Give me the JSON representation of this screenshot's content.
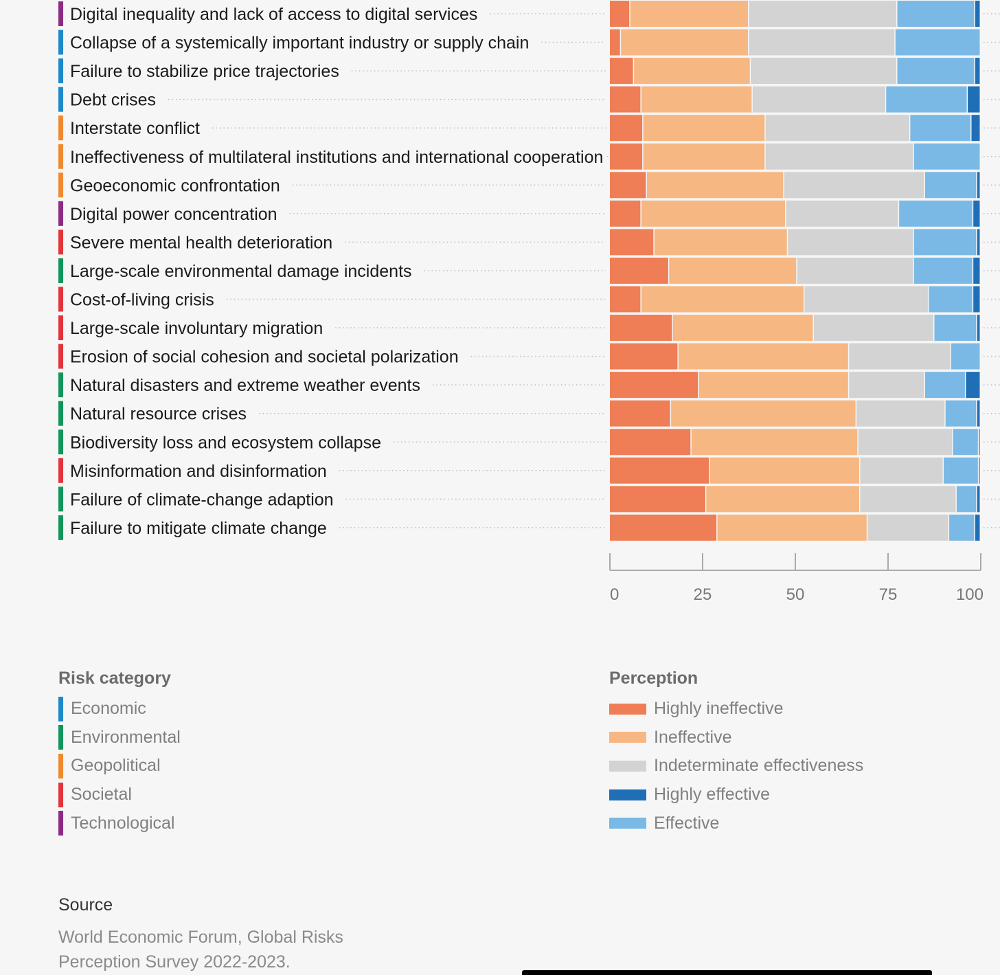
{
  "chart_data": {
    "type": "bar",
    "orientation": "horizontal",
    "stacked": true,
    "xlim": [
      0,
      100
    ],
    "x_ticks": [
      "0",
      "25",
      "50",
      "75",
      "100"
    ],
    "categories": [
      "Digital inequality and lack of access to digital services",
      "Collapse of a systemically important industry or supply chain",
      "Failure to stabilize price trajectories",
      "Debt crises",
      "Interstate conflict",
      "Ineffectiveness of multilateral institutions and international cooperation",
      "Geoeconomic confrontation",
      "Digital power concentration",
      "Severe mental health deterioration",
      "Large-scale environmental damage incidents",
      "Cost-of-living crisis",
      "Large-scale involuntary migration",
      "Erosion of social cohesion and societal polarization",
      "Natural disasters and extreme weather events",
      "Natural resource crises",
      "Biodiversity loss and ecosystem collapse",
      "Misinformation and disinformation",
      "Failure of climate-change adaption",
      "Failure to mitigate climate change"
    ],
    "row_category": [
      "Technological",
      "Economic",
      "Economic",
      "Economic",
      "Geopolitical",
      "Geopolitical",
      "Geopolitical",
      "Technological",
      "Societal",
      "Environmental",
      "Societal",
      "Societal",
      "Societal",
      "Environmental",
      "Environmental",
      "Environmental",
      "Societal",
      "Environmental",
      "Environmental"
    ],
    "series": [
      {
        "name": "Highly ineffective",
        "color": "#ef7d55",
        "values": [
          5.5,
          3,
          6.5,
          8.5,
          9,
          9,
          10,
          8.5,
          12,
          16,
          8.5,
          17,
          18.5,
          24,
          16.5,
          22,
          27,
          26,
          29
        ]
      },
      {
        "name": "Ineffective",
        "color": "#f7b782",
        "values": [
          32,
          34.5,
          31.5,
          30,
          33,
          33,
          37,
          39,
          36,
          34.5,
          44,
          38,
          46,
          40.5,
          50,
          45,
          40.5,
          41.5,
          40.5
        ]
      },
      {
        "name": "Indeterminate effectiveness",
        "color": "#d3d3d3",
        "values": [
          40,
          39.5,
          39.5,
          36,
          39,
          40,
          38,
          30.5,
          34,
          31.5,
          33.5,
          32.5,
          27.5,
          20.5,
          24,
          25.5,
          22.5,
          26,
          22
        ]
      },
      {
        "name": "Effective",
        "color": "#7ab9e5",
        "values": [
          21,
          23,
          21,
          22,
          16.5,
          18,
          14,
          20,
          17,
          16,
          12,
          11.5,
          8,
          11,
          8.5,
          7,
          9.5,
          5.5,
          7
        ]
      },
      {
        "name": "Highly effective",
        "color": "#1f6fb6",
        "values": [
          1.5,
          0,
          1.5,
          3.5,
          2.5,
          0,
          1,
          2,
          1,
          2,
          2,
          1,
          0,
          4,
          1,
          0.5,
          0.5,
          1,
          1.5
        ]
      }
    ]
  },
  "category_colors": {
    "Economic": "#1e88c9",
    "Environmental": "#11955a",
    "Geopolitical": "#ef8a30",
    "Societal": "#e2343a",
    "Technological": "#8d2b85"
  },
  "legend_risk": {
    "title": "Risk category",
    "items": [
      {
        "label": "Economic",
        "color": "#1e88c9"
      },
      {
        "label": "Environmental",
        "color": "#11955a"
      },
      {
        "label": "Geopolitical",
        "color": "#ef8a30"
      },
      {
        "label": "Societal",
        "color": "#e2343a"
      },
      {
        "label": "Technological",
        "color": "#8d2b85"
      }
    ]
  },
  "legend_perception": {
    "title": "Perception",
    "items": [
      {
        "label": "Highly ineffective",
        "color": "#ef7d55"
      },
      {
        "label": "Ineffective",
        "color": "#f7b782"
      },
      {
        "label": "Indeterminate effectiveness",
        "color": "#d3d3d3"
      },
      {
        "label": "Highly effective",
        "color": "#1f6fb6"
      },
      {
        "label": "Effective",
        "color": "#7ab9e5"
      }
    ]
  },
  "source": {
    "title": "Source",
    "text": "World Economic Forum, Global Risks Perception Survey 2022-2023."
  }
}
